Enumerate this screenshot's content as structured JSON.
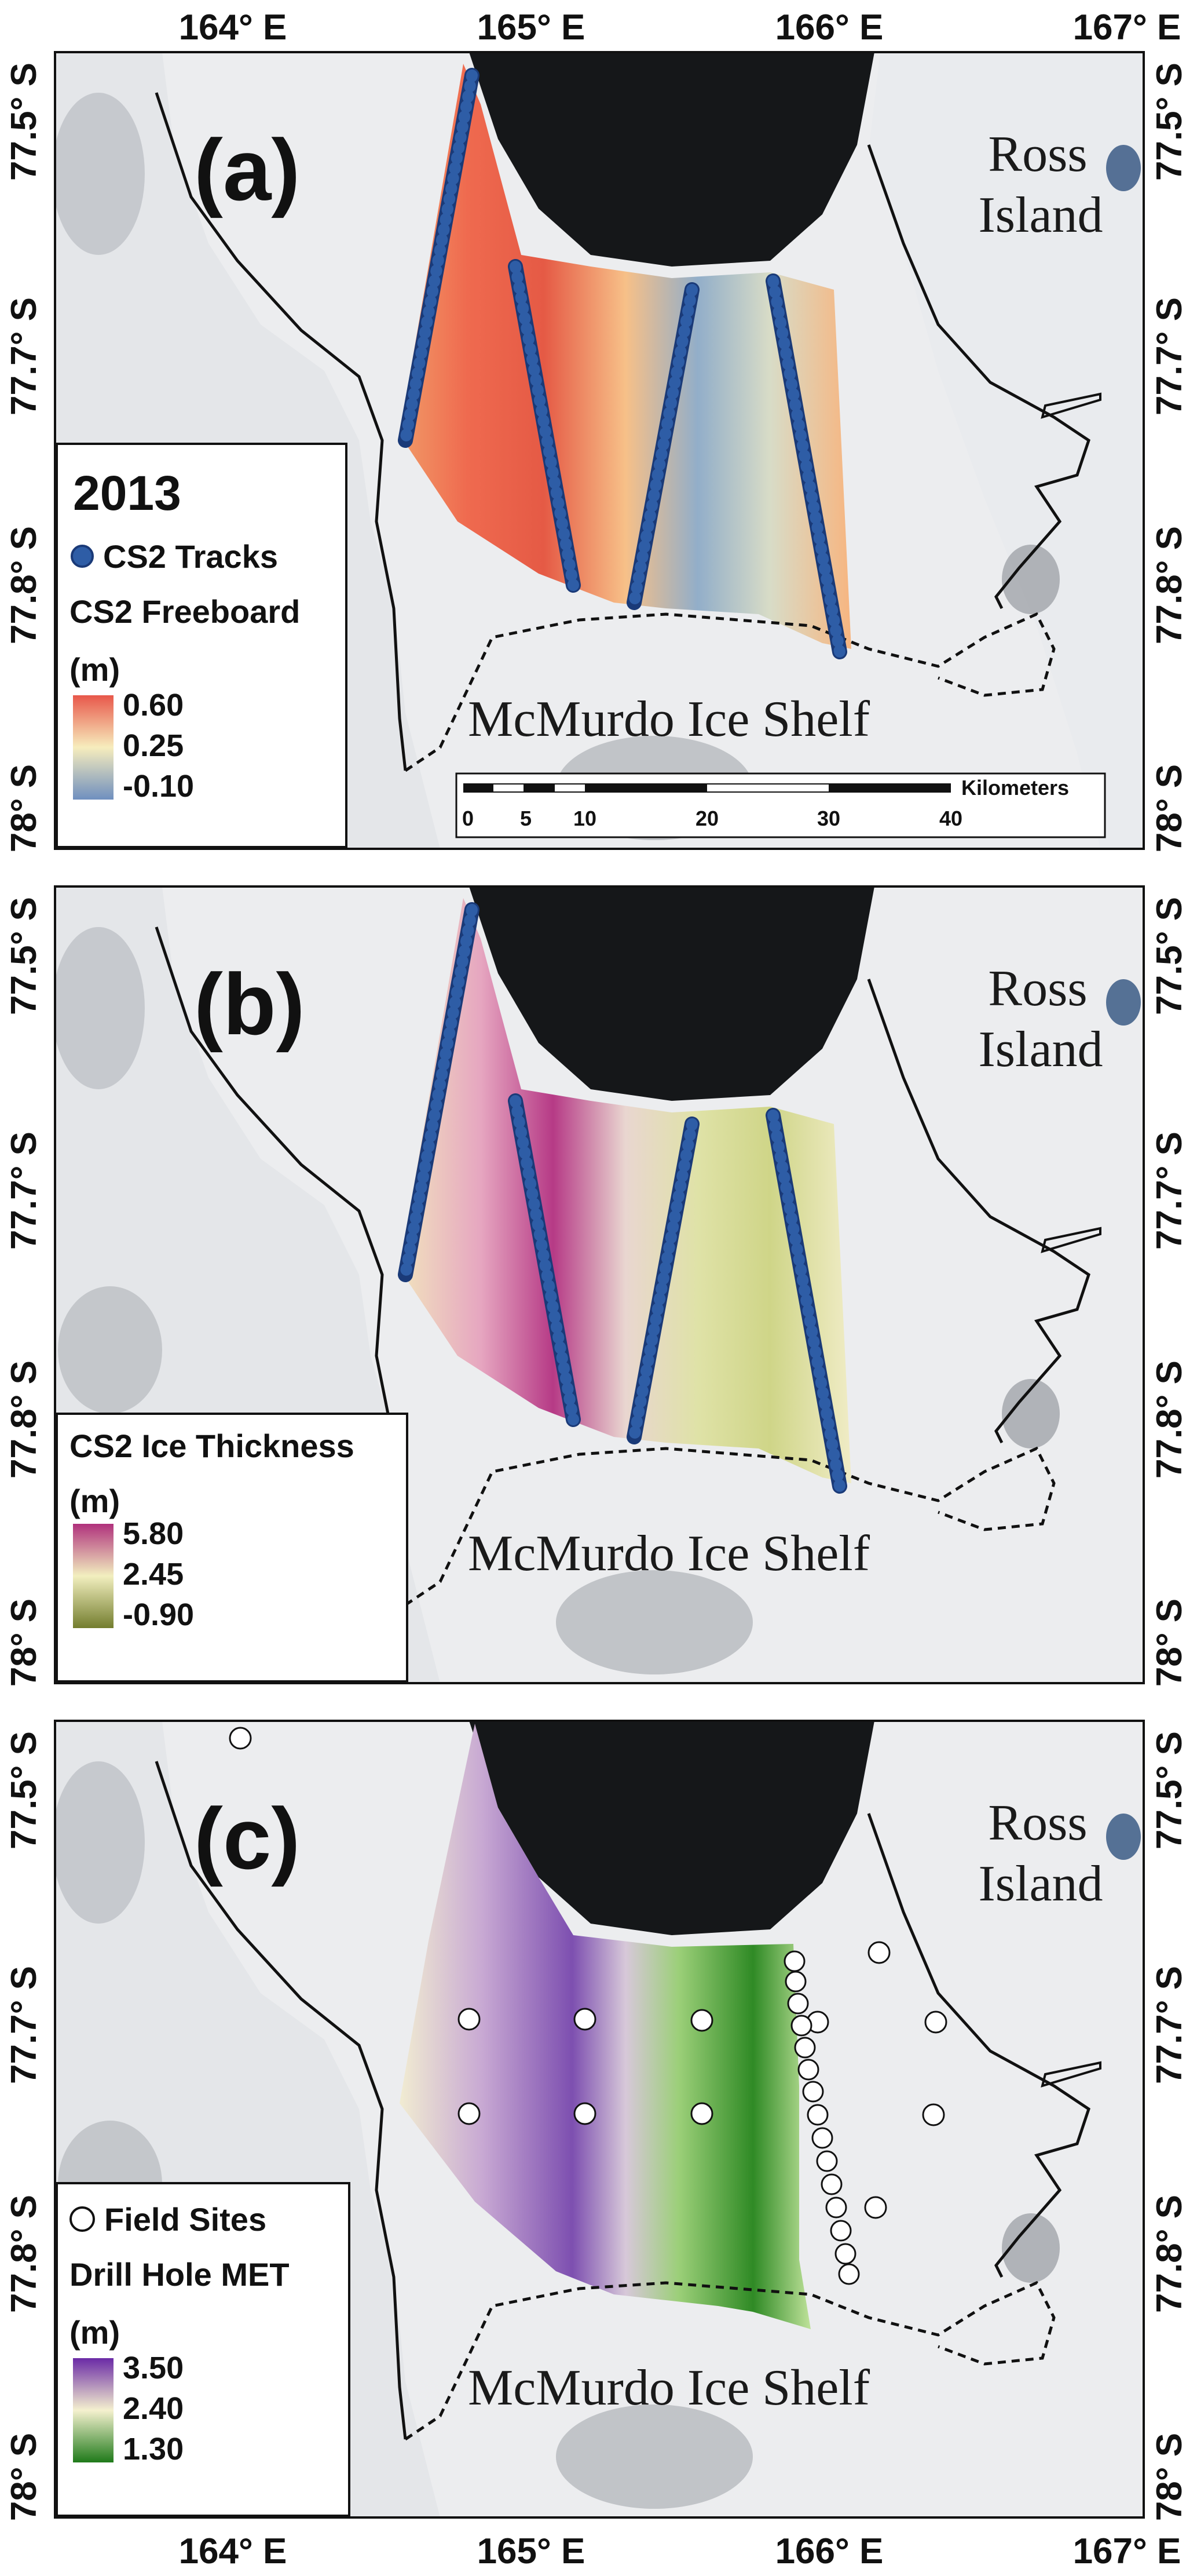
{
  "axes": {
    "lon_labels": [
      "164° E",
      "165° E",
      "166° E",
      "167° E"
    ],
    "lat_labels": [
      "77.5° S",
      "77.7° S",
      "77.7° S",
      "77.8° S",
      "78° S"
    ]
  },
  "places": {
    "ross_line1": "Ross",
    "ross_line2": "Island",
    "mcmurdo": "McMurdo Ice Shelf"
  },
  "scalebar": {
    "unit": "Kilometers",
    "ticks": [
      "0",
      "5",
      "10",
      "20",
      "30",
      "40"
    ]
  },
  "panels": [
    {
      "label": "(a)",
      "legend": {
        "year": "2013",
        "symbol_label": "CS2 Tracks",
        "title": "CS2 Freeboard",
        "unit": "(m)",
        "ticks": [
          "0.60",
          "0.25",
          "-0.10"
        ],
        "colors": [
          "#e8574a",
          "#f7edbd",
          "#6f8fbf"
        ]
      }
    },
    {
      "label": "(b)",
      "legend": {
        "title": "CS2 Ice Thickness",
        "unit": "(m)",
        "ticks": [
          "5.80",
          "2.45",
          "-0.90"
        ],
        "colors": [
          "#b0317c",
          "#f2efbf",
          "#737d2e"
        ]
      }
    },
    {
      "label": "(c)",
      "legend": {
        "symbol_label": "Field Sites",
        "title": "Drill Hole MET",
        "unit": "(m)",
        "ticks": [
          "3.50",
          "2.40",
          "1.30"
        ],
        "colors": [
          "#6a2aa6",
          "#f5f1cf",
          "#1f7a1a"
        ]
      }
    }
  ]
}
